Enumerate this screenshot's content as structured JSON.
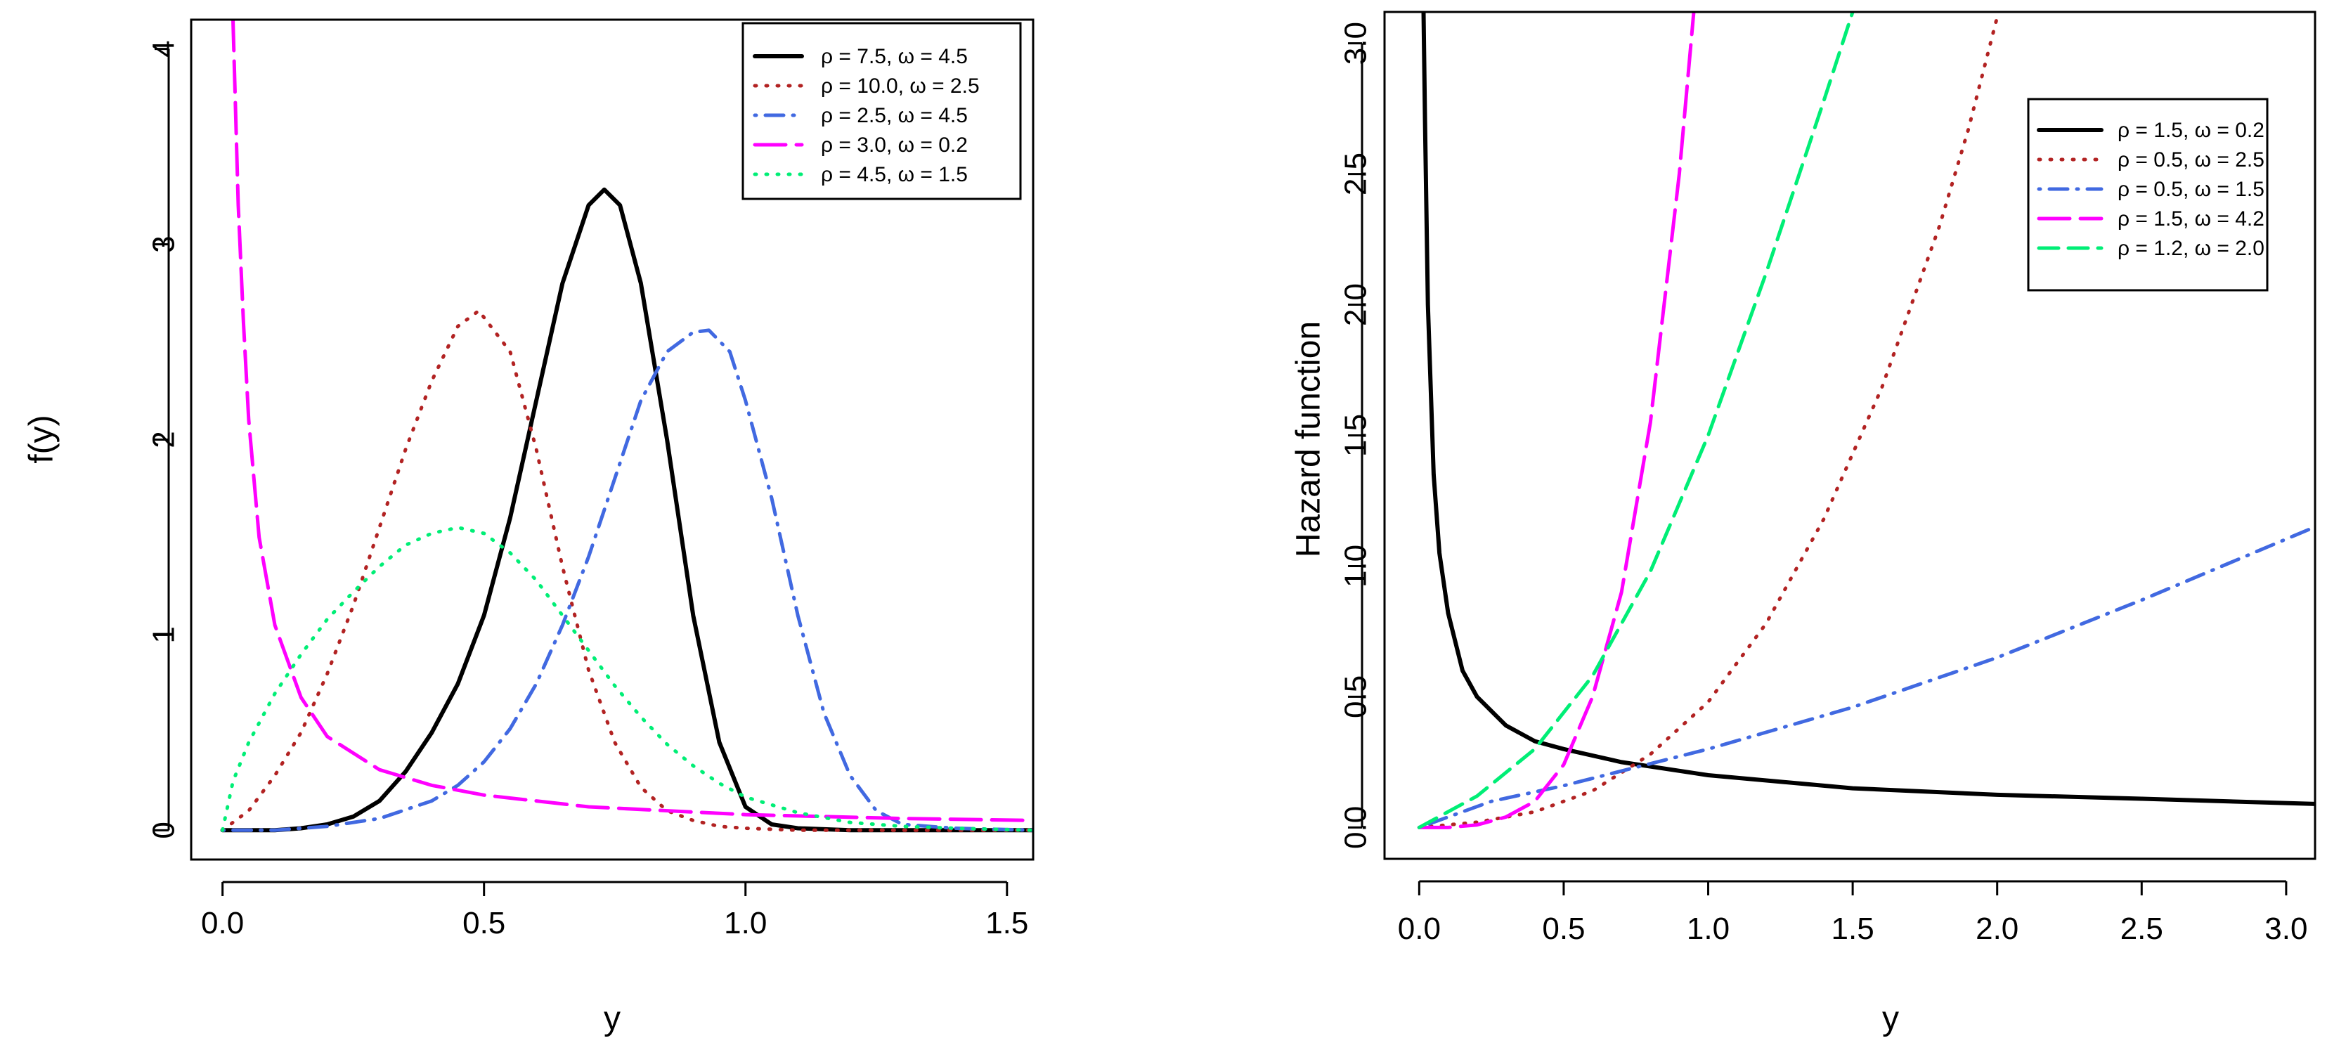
{
  "chart_data": [
    {
      "type": "line",
      "title": "",
      "xlabel": "y",
      "ylabel": "f(y)",
      "xlim": [
        -0.06,
        1.55
      ],
      "ylim": [
        -0.15,
        4.15
      ],
      "xticks": [
        0.0,
        0.5,
        1.0,
        1.5
      ],
      "xtick_labels": [
        "0.0",
        "0.5",
        "1.0",
        "1.5"
      ],
      "yticks": [
        0,
        1,
        2,
        3,
        4
      ],
      "ytick_labels": [
        "0",
        "1",
        "2",
        "3",
        "4"
      ],
      "legend_position": "top-right",
      "series": [
        {
          "name": "ρ = 7.5, ω = 4.5",
          "color": "#000000",
          "style": "solid",
          "x": [
            0.0,
            0.05,
            0.1,
            0.15,
            0.2,
            0.25,
            0.3,
            0.35,
            0.4,
            0.45,
            0.5,
            0.55,
            0.6,
            0.65,
            0.7,
            0.73,
            0.76,
            0.8,
            0.85,
            0.9,
            0.95,
            1.0,
            1.05,
            1.1,
            1.2,
            1.3,
            1.4,
            1.55
          ],
          "y": [
            0.0,
            0.0,
            0.0,
            0.01,
            0.03,
            0.07,
            0.15,
            0.3,
            0.5,
            0.75,
            1.1,
            1.6,
            2.2,
            2.8,
            3.2,
            3.28,
            3.2,
            2.8,
            2.0,
            1.1,
            0.45,
            0.12,
            0.03,
            0.01,
            0.0,
            0.0,
            0.0,
            0.0
          ]
        },
        {
          "name": "ρ = 10.0, ω = 2.5",
          "color": "#b22222",
          "style": "dotted",
          "x": [
            0.0,
            0.05,
            0.1,
            0.15,
            0.2,
            0.25,
            0.3,
            0.35,
            0.4,
            0.45,
            0.49,
            0.55,
            0.6,
            0.65,
            0.7,
            0.75,
            0.8,
            0.85,
            0.9,
            0.95,
            1.0,
            1.1,
            1.2,
            1.55
          ],
          "y": [
            0.0,
            0.1,
            0.28,
            0.5,
            0.8,
            1.15,
            1.55,
            1.95,
            2.3,
            2.58,
            2.66,
            2.45,
            1.95,
            1.35,
            0.82,
            0.45,
            0.22,
            0.1,
            0.05,
            0.02,
            0.01,
            0.0,
            0.0,
            0.0
          ]
        },
        {
          "name": "ρ = 2.5, ω = 4.5",
          "color": "#4169e1",
          "style": "dotdash",
          "x": [
            0.0,
            0.1,
            0.2,
            0.3,
            0.4,
            0.45,
            0.5,
            0.55,
            0.6,
            0.65,
            0.7,
            0.75,
            0.8,
            0.85,
            0.9,
            0.93,
            0.97,
            1.0,
            1.05,
            1.1,
            1.15,
            1.2,
            1.25,
            1.3,
            1.4,
            1.55
          ],
          "y": [
            0.0,
            0.0,
            0.02,
            0.06,
            0.15,
            0.23,
            0.35,
            0.52,
            0.75,
            1.05,
            1.4,
            1.8,
            2.2,
            2.45,
            2.55,
            2.56,
            2.45,
            2.2,
            1.7,
            1.1,
            0.6,
            0.28,
            0.1,
            0.03,
            0.01,
            0.0
          ]
        },
        {
          "name": "ρ = 3.0, ω = 0.2",
          "color": "#ff00ff",
          "style": "longdash",
          "x": [
            0.02,
            0.03,
            0.04,
            0.05,
            0.07,
            0.1,
            0.15,
            0.2,
            0.3,
            0.4,
            0.5,
            0.7,
            1.0,
            1.3,
            1.55
          ],
          "y": [
            4.15,
            3.2,
            2.6,
            2.1,
            1.5,
            1.05,
            0.68,
            0.48,
            0.31,
            0.23,
            0.18,
            0.12,
            0.08,
            0.06,
            0.05
          ]
        },
        {
          "name": "ρ = 4.5, ω = 1.5",
          "color": "#00ee76",
          "style": "dotted",
          "x": [
            0.0,
            0.02,
            0.05,
            0.1,
            0.15,
            0.2,
            0.25,
            0.3,
            0.35,
            0.4,
            0.45,
            0.5,
            0.55,
            0.6,
            0.65,
            0.7,
            0.75,
            0.8,
            0.85,
            0.9,
            0.95,
            1.0,
            1.1,
            1.2,
            1.3,
            1.4,
            1.55
          ],
          "y": [
            0.0,
            0.25,
            0.45,
            0.7,
            0.9,
            1.08,
            1.22,
            1.35,
            1.46,
            1.52,
            1.55,
            1.52,
            1.42,
            1.28,
            1.1,
            0.92,
            0.74,
            0.58,
            0.44,
            0.33,
            0.24,
            0.17,
            0.09,
            0.04,
            0.02,
            0.01,
            0.0
          ]
        }
      ]
    },
    {
      "type": "line",
      "title": "",
      "xlabel": "y",
      "ylabel": "Hazard function",
      "xlim": [
        -0.12,
        3.1
      ],
      "ylim": [
        -0.12,
        3.12
      ],
      "xticks": [
        0.0,
        0.5,
        1.0,
        1.5,
        2.0,
        2.5,
        3.0
      ],
      "xtick_labels": [
        "0.0",
        "0.5",
        "1.0",
        "1.5",
        "2.0",
        "2.5",
        "3.0"
      ],
      "yticks": [
        0.0,
        0.5,
        1.0,
        1.5,
        2.0,
        2.5,
        3.0
      ],
      "ytick_labels": [
        "0.0",
        "0.5",
        "1.0",
        "1.5",
        "2.0",
        "2.5",
        "3.0"
      ],
      "legend_position": "top-right",
      "series": [
        {
          "name": "ρ = 1.5, ω = 0.2",
          "color": "#000000",
          "style": "solid",
          "x": [
            0.015,
            0.02,
            0.03,
            0.05,
            0.07,
            0.1,
            0.15,
            0.2,
            0.3,
            0.4,
            0.5,
            0.7,
            1.0,
            1.5,
            2.0,
            2.5,
            3.1
          ],
          "y": [
            3.12,
            2.7,
            2.0,
            1.35,
            1.05,
            0.82,
            0.6,
            0.5,
            0.39,
            0.33,
            0.3,
            0.25,
            0.2,
            0.15,
            0.125,
            0.11,
            0.09
          ]
        },
        {
          "name": "ρ = 0.5, ω = 2.5",
          "color": "#b22222",
          "style": "dotted",
          "x": [
            0.0,
            0.2,
            0.4,
            0.6,
            0.8,
            1.0,
            1.2,
            1.4,
            1.6,
            1.8,
            1.9,
            2.0
          ],
          "y": [
            0.0,
            0.02,
            0.06,
            0.14,
            0.28,
            0.48,
            0.78,
            1.18,
            1.68,
            2.3,
            2.67,
            3.1
          ]
        },
        {
          "name": "ρ = 0.5, ω = 1.5",
          "color": "#4169e1",
          "style": "dotdash",
          "x": [
            0.0,
            0.25,
            0.5,
            0.75,
            1.0,
            1.5,
            2.0,
            2.5,
            3.1
          ],
          "y": [
            0.0,
            0.1,
            0.16,
            0.23,
            0.3,
            0.46,
            0.65,
            0.87,
            1.15
          ]
        },
        {
          "name": "ρ = 1.5, ω = 4.2",
          "color": "#ff00ff",
          "style": "longdash",
          "x": [
            0.0,
            0.1,
            0.2,
            0.3,
            0.4,
            0.5,
            0.6,
            0.7,
            0.8,
            0.9,
            0.95
          ],
          "y": [
            0.0,
            0.0,
            0.01,
            0.04,
            0.1,
            0.24,
            0.5,
            0.9,
            1.55,
            2.5,
            3.12
          ]
        },
        {
          "name": "ρ = 1.2, ω = 2.0",
          "color": "#00ee76",
          "style": "dashed",
          "x": [
            0.0,
            0.2,
            0.4,
            0.6,
            0.8,
            1.0,
            1.2,
            1.4,
            1.5
          ],
          "y": [
            0.0,
            0.12,
            0.3,
            0.58,
            0.98,
            1.5,
            2.12,
            2.78,
            3.12
          ]
        }
      ]
    }
  ]
}
